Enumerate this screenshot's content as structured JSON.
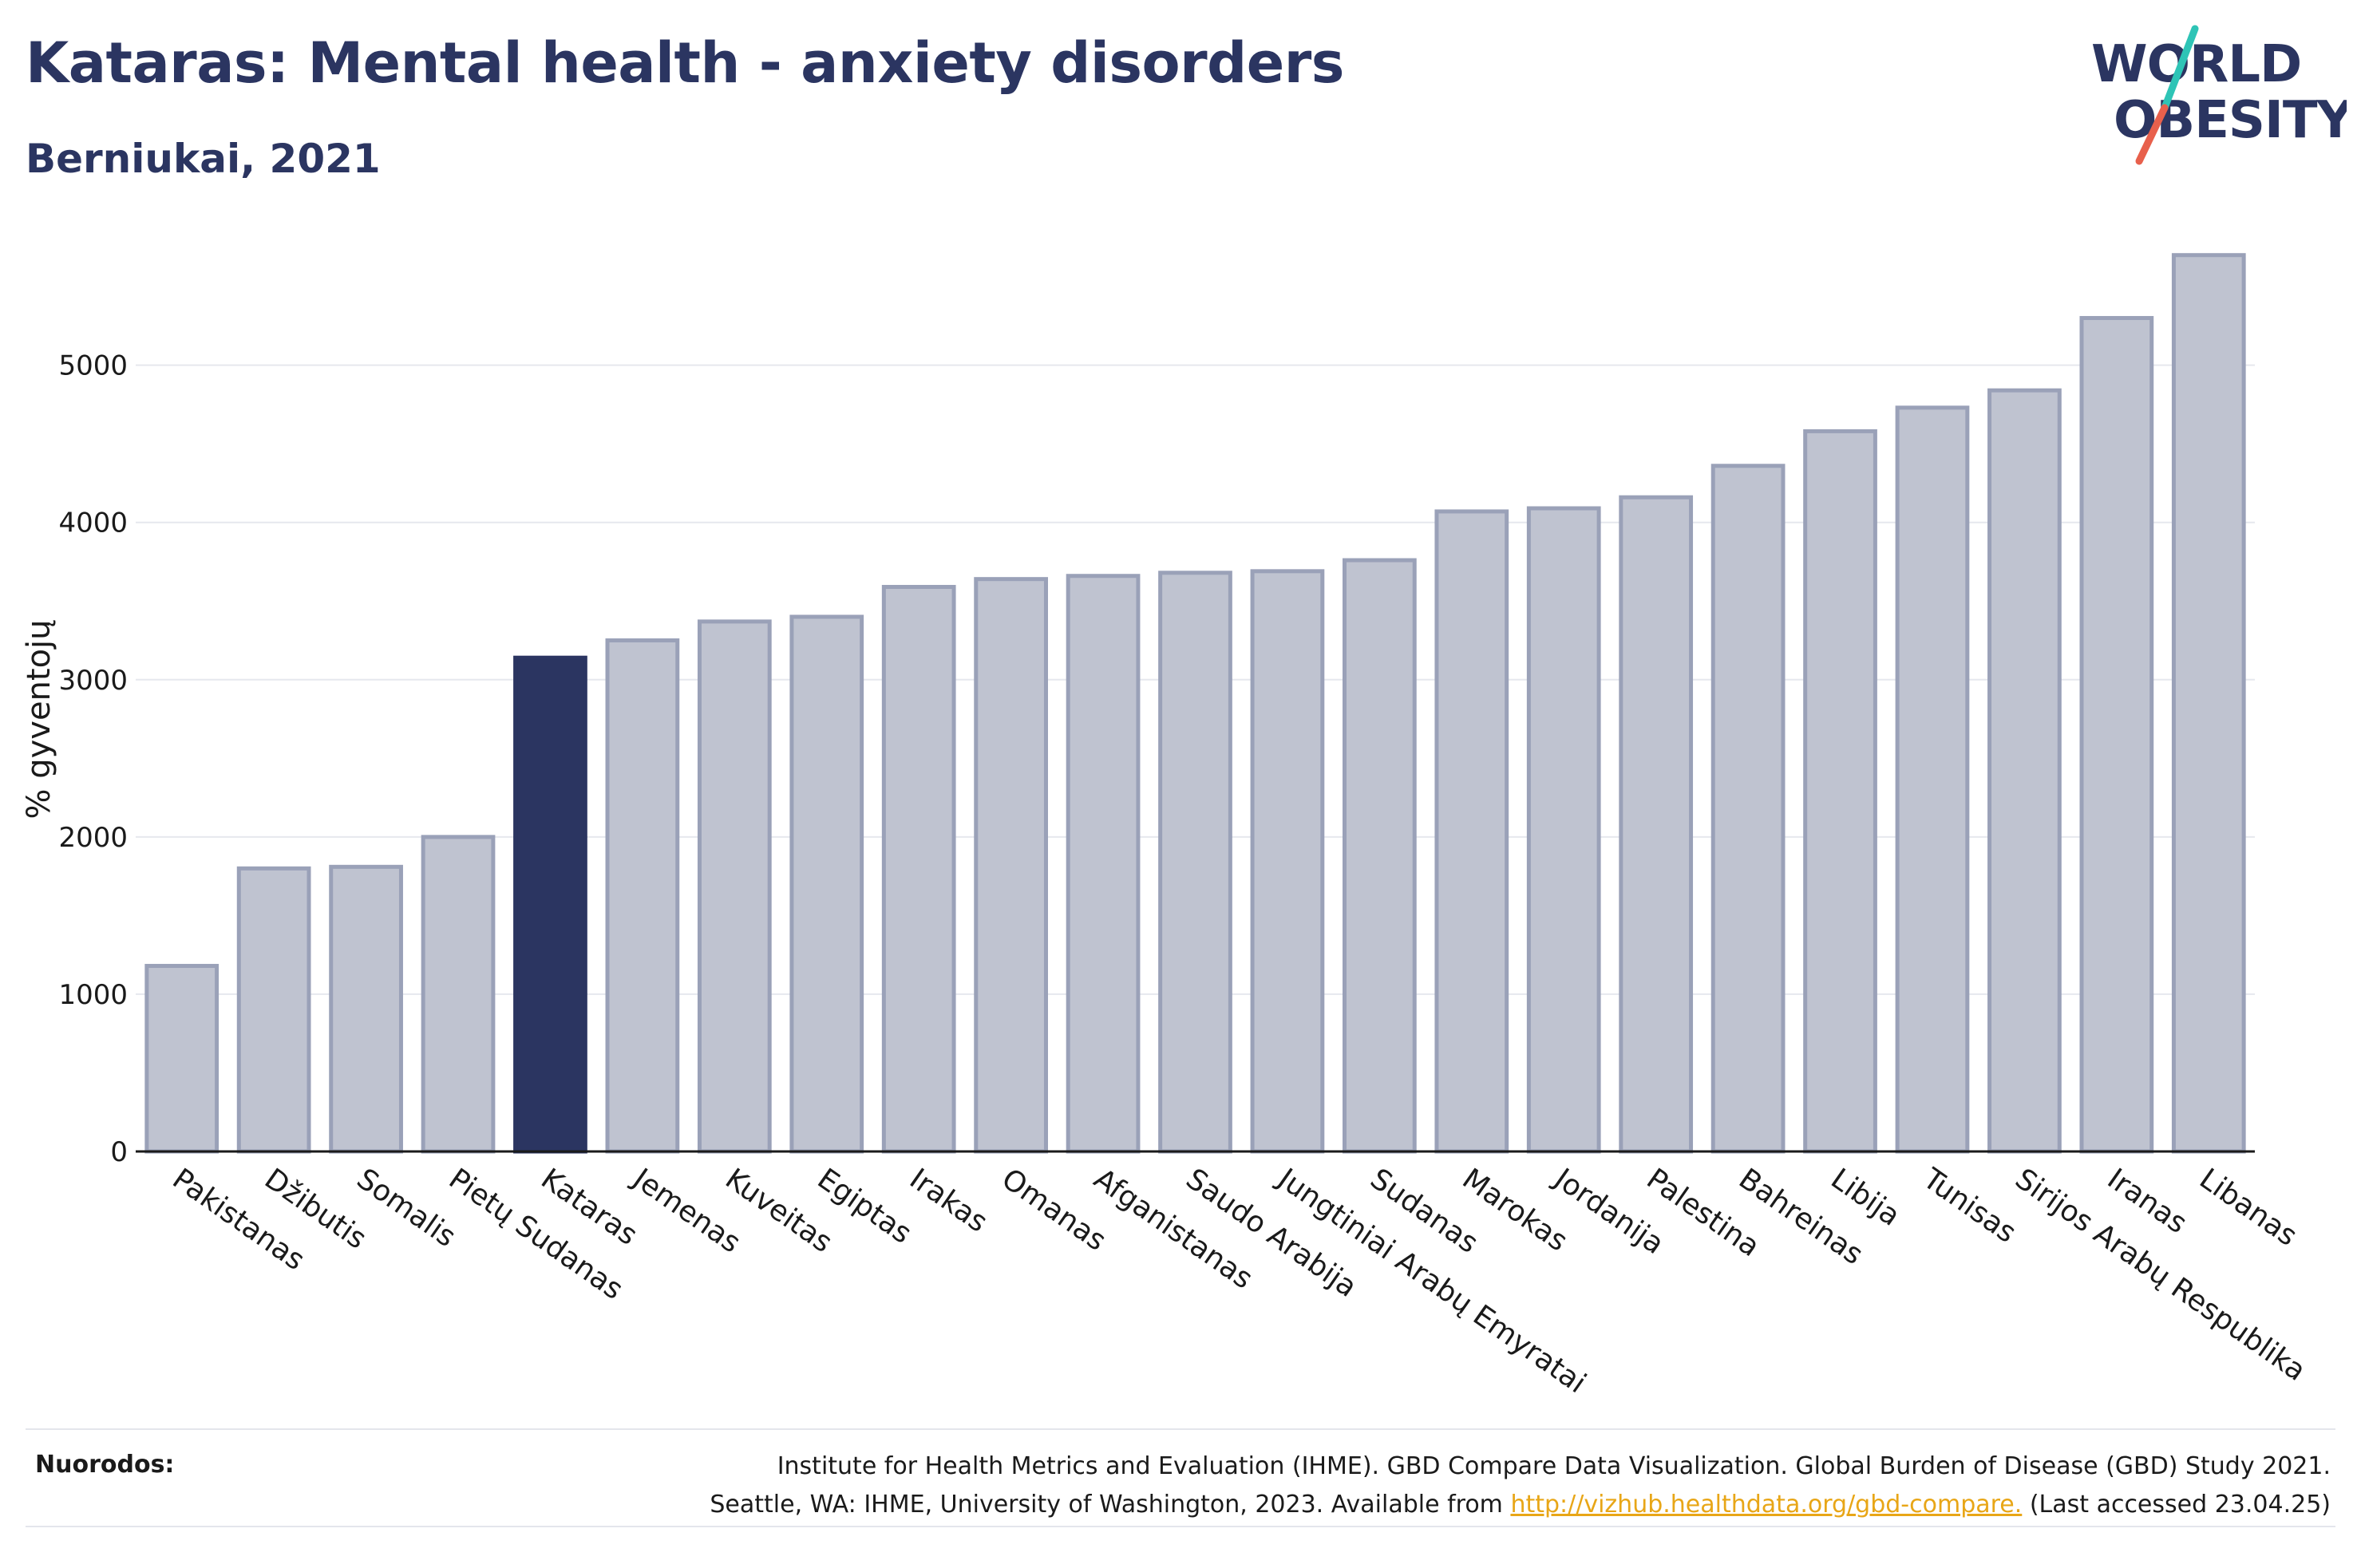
{
  "header": {
    "title": "Kataras: Mental health - anxiety disorders",
    "subtitle": "Berniukai, 2021"
  },
  "logo": {
    "line1": "WORLD",
    "line2": "OBESITY",
    "colors": {
      "text": "#2b3561",
      "slash_top": "#2ec4b6",
      "slash_bottom": "#e8604c"
    }
  },
  "chart_data": {
    "type": "bar",
    "ylabel": "% gyventojų",
    "xlabel": "",
    "ylim": [
      0,
      5800
    ],
    "yticks": [
      0,
      1000,
      2000,
      3000,
      4000,
      5000
    ],
    "grid": true,
    "highlight": "Kataras",
    "colors": {
      "bar": "#bfc3d0",
      "bar_edge": "#9aa1b8",
      "highlight": "#2b3561"
    },
    "categories": [
      "Pakistanas",
      "Džibutis",
      "Somalis",
      "Pietų Sudanas",
      "Kataras",
      "Jemenas",
      "Kuveitas",
      "Egiptas",
      "Irakas",
      "Omanas",
      "Afganistanas",
      "Saudo Arabija",
      "Jungtiniai Arabų Emyratai",
      "Sudanas",
      "Marokas",
      "Jordanija",
      "Palestina",
      "Bahreinas",
      "Libija",
      "Tunisas",
      "Sirijos Arabų Respublika",
      "Iranas",
      "Libanas"
    ],
    "values": [
      1180,
      1800,
      1810,
      2000,
      3140,
      3250,
      3370,
      3400,
      3590,
      3640,
      3660,
      3680,
      3690,
      3760,
      4070,
      4090,
      4160,
      4360,
      4580,
      4730,
      4840,
      5300,
      5700
    ]
  },
  "footer": {
    "label": "Nuorodos:",
    "line1": "Institute for Health Metrics and Evaluation (IHME). GBD Compare Data Visualization. Global Burden of Disease (GBD) Study 2021.",
    "line2_prefix": "Seattle, WA: IHME, University of Washington, 2023. Available from ",
    "link": "http://vizhub.healthdata.org/gbd-compare.",
    "line2_suffix": " (Last accessed 23.04.25)"
  }
}
